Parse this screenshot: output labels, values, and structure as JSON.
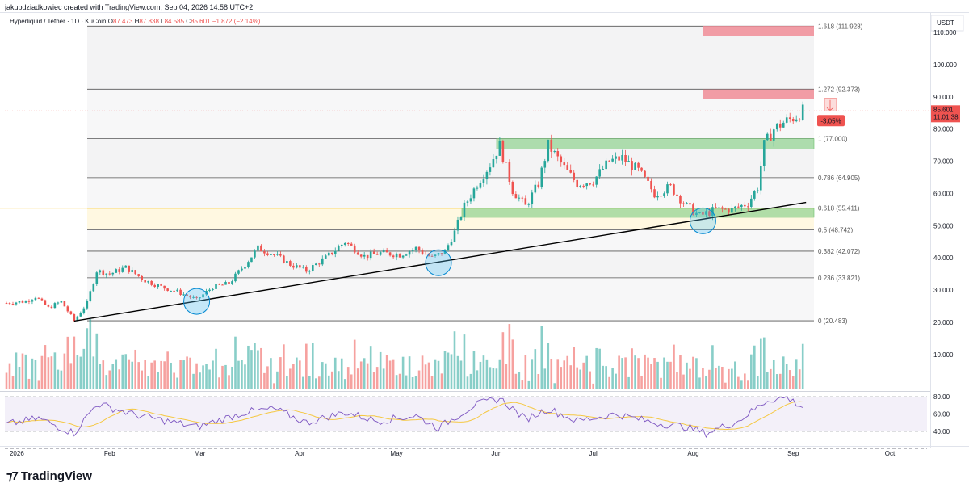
{
  "header": {
    "attribution": "jakubdziadkowiec created with TradingView.com, Sep 04, 2026 14:58 UTC+2",
    "symbol": "Hyperliquid / Tether · 1D · KuCoin",
    "open_label": "O",
    "open": "87.473",
    "high_label": "H",
    "high": "87.838",
    "low_label": "L",
    "low": "84.585",
    "close_label": "C",
    "close": "85.601",
    "change": "−1.872 (−2.14%)"
  },
  "footer": {
    "brand": "TradingView"
  },
  "colors": {
    "up": "#26a69a",
    "down": "#ef5350",
    "rsi": "#7e57c2",
    "rsi_ma": "#f5c842",
    "fib_618": "#f2b800",
    "zone_green": "#8fd18f",
    "zone_red": "#f08c96"
  },
  "chart_data": {
    "type": "candlestick",
    "quote_currency": "USDT",
    "price_axis": {
      "ticks": [
        10,
        20,
        30,
        40,
        50,
        60,
        70,
        80,
        90,
        100,
        110
      ],
      "tick_labels": [
        "10.000",
        "20.000",
        "30.000",
        "40.000",
        "50.000",
        "60.000",
        "70.000",
        "80.000",
        "90.000",
        "100.000",
        "110.000"
      ],
      "ylim": [
        6,
        118
      ]
    },
    "time_axis": {
      "ticks": [
        "2026",
        "Feb",
        "Mar",
        "Apr",
        "May",
        "Jun",
        "Jul",
        "Aug",
        "Sep",
        "Oct"
      ]
    },
    "last_price": {
      "value": "85.601",
      "countdown": "11:01:38",
      "change_to_target": "-3.05%"
    },
    "fib_levels": [
      {
        "ratio": "0",
        "price": 20.483,
        "label": "0 (20.483)"
      },
      {
        "ratio": "0.236",
        "price": 33.821,
        "label": "0.236 (33.821)"
      },
      {
        "ratio": "0.382",
        "price": 42.072,
        "label": "0.382 (42.072)"
      },
      {
        "ratio": "0.5",
        "price": 48.742,
        "label": "0.5 (48.742)"
      },
      {
        "ratio": "0.618",
        "price": 55.411,
        "label": "0.618 (55.411)"
      },
      {
        "ratio": "0.786",
        "price": 64.905,
        "label": "0.786 (64.905)"
      },
      {
        "ratio": "1",
        "price": 77.0,
        "label": "1 (77.000)"
      },
      {
        "ratio": "1.272",
        "price": 92.373,
        "label": "1.272 (92.373)"
      },
      {
        "ratio": "1.618",
        "price": 111.928,
        "label": "1.618 (111.928)"
      }
    ],
    "zones": [
      {
        "kind": "resistance",
        "from": 108.8,
        "to": 112.0
      },
      {
        "kind": "resistance",
        "from": 89.2,
        "to": 92.3
      },
      {
        "kind": "support",
        "from": 73.8,
        "to": 77.0
      },
      {
        "kind": "support",
        "from": 52.6,
        "to": 55.4
      }
    ],
    "trendline": {
      "from_date": "2026-01-21",
      "from_price": 20.4,
      "to_date": "2026-09-05",
      "to_price": 57.2
    },
    "highlights": [
      {
        "date": "2026-02-28",
        "price": 26.5
      },
      {
        "date": "2026-05-14",
        "price": 38.5
      },
      {
        "date": "2026-08-04",
        "price": 51.5
      }
    ],
    "rsi": {
      "levels": [
        80,
        60,
        40
      ],
      "ylim": [
        30,
        82
      ]
    },
    "price_path": [
      [
        "2025-12-31",
        26
      ],
      [
        "2026-01-06",
        26.5
      ],
      [
        "2026-01-09",
        28
      ],
      [
        "2026-01-13",
        24.5
      ],
      [
        "2026-01-17",
        26.5
      ],
      [
        "2026-01-21",
        20.5
      ],
      [
        "2026-01-25",
        26
      ],
      [
        "2026-01-28",
        36
      ],
      [
        "2026-02-01",
        35
      ],
      [
        "2026-02-06",
        37
      ],
      [
        "2026-02-12",
        33
      ],
      [
        "2026-02-17",
        31
      ],
      [
        "2026-02-22",
        29.5
      ],
      [
        "2026-02-28",
        27
      ],
      [
        "2026-03-05",
        31
      ],
      [
        "2026-03-10",
        32
      ],
      [
        "2026-03-15",
        38
      ],
      [
        "2026-03-19",
        43
      ],
      [
        "2026-03-24",
        41
      ],
      [
        "2026-03-29",
        38
      ],
      [
        "2026-04-03",
        36
      ],
      [
        "2026-04-09",
        40
      ],
      [
        "2026-04-15",
        45
      ],
      [
        "2026-04-21",
        40.5
      ],
      [
        "2026-04-26",
        41.5
      ],
      [
        "2026-05-02",
        41
      ],
      [
        "2026-05-07",
        43
      ],
      [
        "2026-05-12",
        40
      ],
      [
        "2026-05-16",
        42
      ],
      [
        "2026-05-19",
        48
      ],
      [
        "2026-05-22",
        56
      ],
      [
        "2026-05-26",
        63
      ],
      [
        "2026-05-30",
        69
      ],
      [
        "2026-06-02",
        75
      ],
      [
        "2026-06-06",
        61
      ],
      [
        "2026-06-10",
        56
      ],
      [
        "2026-06-14",
        63
      ],
      [
        "2026-06-17",
        75
      ],
      [
        "2026-06-22",
        68
      ],
      [
        "2026-06-26",
        63
      ],
      [
        "2026-07-01",
        64
      ],
      [
        "2026-07-06",
        70
      ],
      [
        "2026-07-10",
        71
      ],
      [
        "2026-07-15",
        67
      ],
      [
        "2026-07-20",
        60
      ],
      [
        "2026-07-25",
        62
      ],
      [
        "2026-07-30",
        56
      ],
      [
        "2026-08-03",
        53
      ],
      [
        "2026-08-08",
        55
      ],
      [
        "2026-08-13",
        55
      ],
      [
        "2026-08-18",
        57
      ],
      [
        "2026-08-21",
        62
      ],
      [
        "2026-08-23",
        75
      ],
      [
        "2026-08-26",
        80
      ],
      [
        "2026-08-29",
        82
      ],
      [
        "2026-09-02",
        84
      ],
      [
        "2026-09-04",
        85.6
      ]
    ],
    "rsi_path": [
      [
        "2025-12-31",
        48
      ],
      [
        "2026-01-10",
        55
      ],
      [
        "2026-01-21",
        38
      ],
      [
        "2026-01-28",
        72
      ],
      [
        "2026-02-08",
        60
      ],
      [
        "2026-02-28",
        45
      ],
      [
        "2026-03-15",
        62
      ],
      [
        "2026-03-24",
        66
      ],
      [
        "2026-04-03",
        50
      ],
      [
        "2026-04-15",
        62
      ],
      [
        "2026-04-25",
        52
      ],
      [
        "2026-05-07",
        58
      ],
      [
        "2026-05-14",
        44
      ],
      [
        "2026-05-25",
        70
      ],
      [
        "2026-06-02",
        78
      ],
      [
        "2026-06-10",
        54
      ],
      [
        "2026-06-17",
        66
      ],
      [
        "2026-06-26",
        52
      ],
      [
        "2026-07-08",
        60
      ],
      [
        "2026-07-20",
        50
      ],
      [
        "2026-07-30",
        45
      ],
      [
        "2026-08-05",
        38
      ],
      [
        "2026-08-15",
        52
      ],
      [
        "2026-08-24",
        76
      ],
      [
        "2026-08-30",
        79
      ],
      [
        "2026-09-04",
        68
      ]
    ]
  }
}
